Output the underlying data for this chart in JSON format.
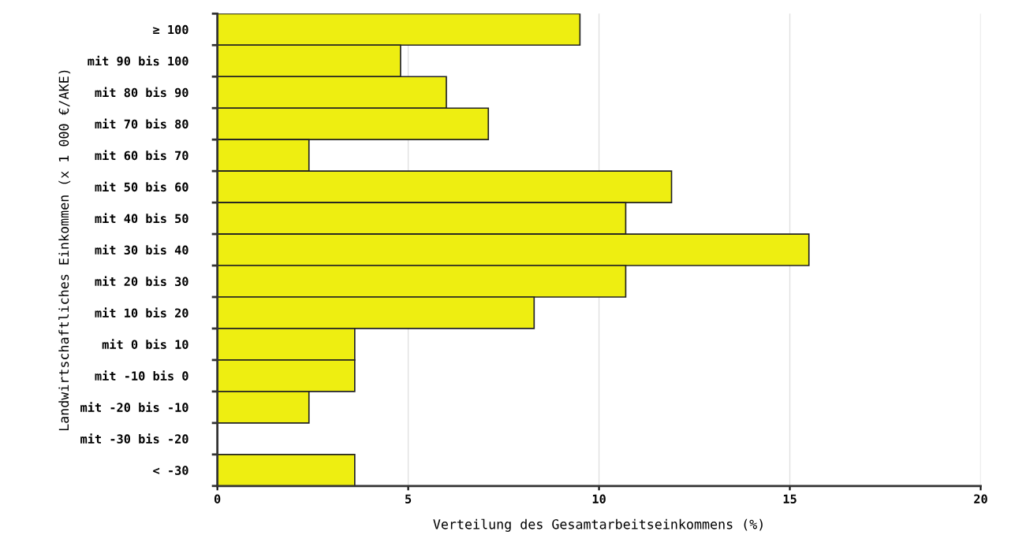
{
  "chart_data": {
    "type": "bar",
    "orientation": "horizontal",
    "xlabel": "Verteilung des Gesamtarbeitseinkommens (%)",
    "ylabel": "Landwirtschaftliches Einkommen (x 1 000 €/AKE)",
    "categories": [
      "≥ 100",
      "mit 90 bis 100",
      "mit 80 bis 90",
      "mit 70 bis 80",
      "mit 60 bis 70",
      "mit 50 bis 60",
      "mit 40 bis 50",
      "mit 30 bis 40",
      "mit 20 bis 30",
      "mit 10 bis 20",
      "mit 0 bis 10",
      "mit -10 bis 0",
      "mit -20 bis -10",
      "mit -30 bis -20",
      "< -30"
    ],
    "values": [
      9.5,
      4.8,
      6.0,
      7.1,
      2.4,
      11.9,
      10.7,
      15.5,
      10.7,
      8.3,
      3.6,
      3.6,
      2.4,
      0,
      3.6
    ],
    "color": "#eeee11",
    "xlim": [
      0,
      20
    ],
    "xticks": [
      0,
      5,
      10,
      15,
      20
    ],
    "grid": "x"
  }
}
